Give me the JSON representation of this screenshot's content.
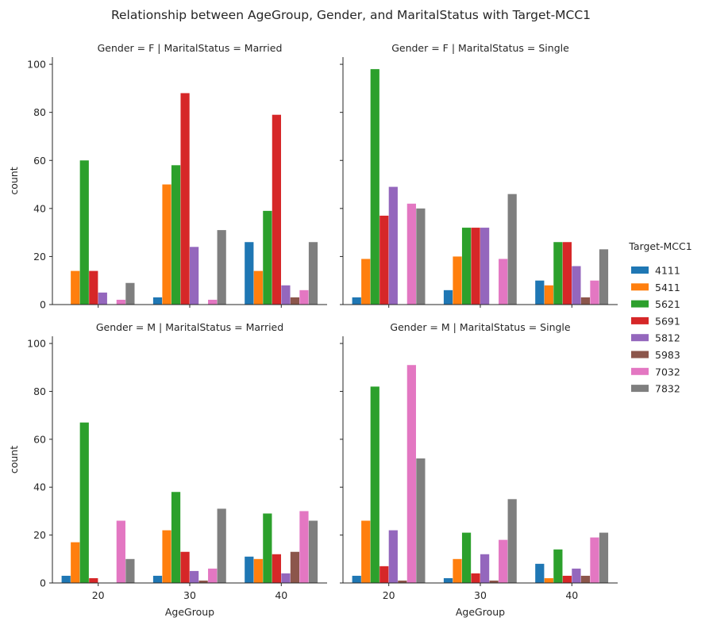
{
  "chart_data": {
    "type": "bar",
    "title": "Relationship between AgeGroup, Gender, and MaritalStatus with Target-MCC1",
    "xlabel": "AgeGroup",
    "ylabel": "count",
    "categories": [
      "20",
      "30",
      "40"
    ],
    "ylim": [
      0,
      103
    ],
    "yticks": [
      0,
      20,
      40,
      60,
      80,
      100
    ],
    "grid": false,
    "legend": {
      "title": "Target-MCC1",
      "placement": "right",
      "entries": [
        "4111",
        "5411",
        "5621",
        "5691",
        "5812",
        "5983",
        "7032",
        "7832"
      ]
    },
    "colors": [
      "#1f77b4",
      "#ff7f0e",
      "#2ca02c",
      "#d62728",
      "#9467bd",
      "#8c564b",
      "#e377c2",
      "#7f7f7f"
    ],
    "panels": [
      {
        "title": "Gender = F | MaritalStatus = Married",
        "series": [
          {
            "name": "4111",
            "values": [
              0,
              3,
              26
            ]
          },
          {
            "name": "5411",
            "values": [
              14,
              50,
              14
            ]
          },
          {
            "name": "5621",
            "values": [
              60,
              58,
              39
            ]
          },
          {
            "name": "5691",
            "values": [
              14,
              88,
              79
            ]
          },
          {
            "name": "5812",
            "values": [
              5,
              24,
              8
            ]
          },
          {
            "name": "5983",
            "values": [
              0,
              0,
              3
            ]
          },
          {
            "name": "7032",
            "values": [
              2,
              2,
              6
            ]
          },
          {
            "name": "7832",
            "values": [
              9,
              31,
              26
            ]
          }
        ]
      },
      {
        "title": "Gender = F | MaritalStatus = Single",
        "series": [
          {
            "name": "4111",
            "values": [
              3,
              6,
              10
            ]
          },
          {
            "name": "5411",
            "values": [
              19,
              20,
              8
            ]
          },
          {
            "name": "5621",
            "values": [
              98,
              32,
              26
            ]
          },
          {
            "name": "5691",
            "values": [
              37,
              32,
              26
            ]
          },
          {
            "name": "5812",
            "values": [
              49,
              32,
              16
            ]
          },
          {
            "name": "5983",
            "values": [
              0,
              0,
              3
            ]
          },
          {
            "name": "7032",
            "values": [
              42,
              19,
              10
            ]
          },
          {
            "name": "7832",
            "values": [
              40,
              46,
              23
            ]
          }
        ]
      },
      {
        "title": "Gender = M | MaritalStatus = Married",
        "series": [
          {
            "name": "4111",
            "values": [
              3,
              3,
              11
            ]
          },
          {
            "name": "5411",
            "values": [
              17,
              22,
              10
            ]
          },
          {
            "name": "5621",
            "values": [
              67,
              38,
              29
            ]
          },
          {
            "name": "5691",
            "values": [
              2,
              13,
              12
            ]
          },
          {
            "name": "5812",
            "values": [
              0,
              5,
              4
            ]
          },
          {
            "name": "5983",
            "values": [
              0,
              1,
              13
            ]
          },
          {
            "name": "7032",
            "values": [
              26,
              6,
              30
            ]
          },
          {
            "name": "7832",
            "values": [
              10,
              31,
              26
            ]
          }
        ]
      },
      {
        "title": "Gender = M | MaritalStatus = Single",
        "series": [
          {
            "name": "4111",
            "values": [
              3,
              2,
              8
            ]
          },
          {
            "name": "5411",
            "values": [
              26,
              10,
              2
            ]
          },
          {
            "name": "5621",
            "values": [
              82,
              21,
              14
            ]
          },
          {
            "name": "5691",
            "values": [
              7,
              4,
              3
            ]
          },
          {
            "name": "5812",
            "values": [
              22,
              12,
              6
            ]
          },
          {
            "name": "5983",
            "values": [
              1,
              1,
              3
            ]
          },
          {
            "name": "7032",
            "values": [
              91,
              18,
              19
            ]
          },
          {
            "name": "7832",
            "values": [
              52,
              35,
              21
            ]
          }
        ]
      }
    ]
  }
}
